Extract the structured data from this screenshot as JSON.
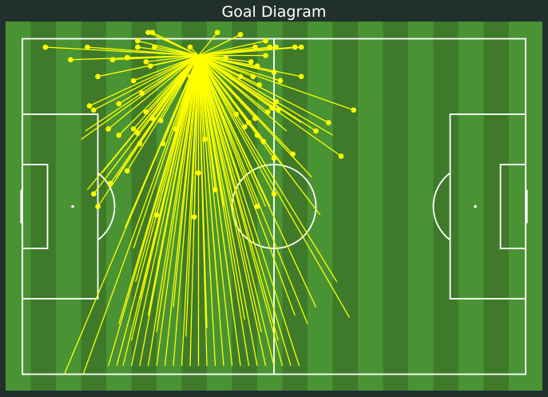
{
  "chart_data": {
    "type": "scatter",
    "title": "Goal Diagram",
    "xlabel": "",
    "ylabel": "",
    "xlim": [
      0,
      120
    ],
    "ylim": [
      0,
      80
    ],
    "grid": false,
    "legend": "none",
    "colors": {
      "background": "#22302d",
      "pitch_dark": "#3e7a2a",
      "pitch_light": "#4a9334",
      "lines": "#ffffff",
      "marker": "#ffff00"
    },
    "origin": {
      "x": 42.0,
      "y": 76.0
    },
    "points": [
      [
        5.5,
        78.0
      ],
      [
        15.5,
        78.0
      ],
      [
        27.5,
        78.0
      ],
      [
        31.5,
        78.0
      ],
      [
        40.0,
        78.0
      ],
      [
        55.5,
        78.0
      ],
      [
        59.0,
        78.0
      ],
      [
        60.5,
        78.0
      ],
      [
        65.0,
        78.0
      ],
      [
        66.5,
        78.0
      ],
      [
        27.5,
        79.5
      ],
      [
        30.0,
        81.5
      ],
      [
        31.0,
        81.5
      ],
      [
        46.5,
        81.5
      ],
      [
        52.0,
        81.0
      ],
      [
        58.0,
        79.5
      ],
      [
        11.5,
        75.0
      ],
      [
        21.5,
        75.0
      ],
      [
        25.0,
        75.5
      ],
      [
        29.5,
        74.5
      ],
      [
        48.5,
        75.5
      ],
      [
        54.5,
        74.5
      ],
      [
        56.0,
        73.5
      ],
      [
        58.0,
        76.0
      ],
      [
        60.0,
        72.0
      ],
      [
        61.5,
        70.0
      ],
      [
        18.0,
        71.0
      ],
      [
        26.5,
        70.0
      ],
      [
        30.5,
        73.5
      ],
      [
        40.0,
        71.0
      ],
      [
        52.0,
        71.0
      ],
      [
        55.0,
        71.0
      ],
      [
        56.5,
        69.0
      ],
      [
        60.5,
        65.0
      ],
      [
        61.0,
        63.0
      ],
      [
        66.5,
        71.0
      ],
      [
        16.0,
        64.0
      ],
      [
        17.0,
        63.0
      ],
      [
        23.0,
        64.5
      ],
      [
        28.5,
        67.0
      ],
      [
        29.5,
        62.5
      ],
      [
        31.0,
        61.0
      ],
      [
        33.0,
        60.5
      ],
      [
        51.0,
        62.0
      ],
      [
        54.0,
        60.0
      ],
      [
        55.5,
        61.0
      ],
      [
        58.5,
        62.5
      ],
      [
        59.5,
        63.5
      ],
      [
        79.0,
        63.0
      ],
      [
        20.5,
        58.5
      ],
      [
        23.0,
        57.0
      ],
      [
        26.5,
        58.5
      ],
      [
        27.5,
        57.5
      ],
      [
        28.0,
        55.0
      ],
      [
        33.5,
        55.0
      ],
      [
        36.5,
        58.5
      ],
      [
        43.5,
        56.0
      ],
      [
        53.0,
        59.0
      ],
      [
        56.0,
        57.0
      ],
      [
        57.5,
        55.5
      ],
      [
        60.0,
        51.5
      ],
      [
        64.5,
        52.5
      ],
      [
        70.0,
        58.0
      ],
      [
        73.0,
        60.0
      ],
      [
        76.0,
        52.0
      ],
      [
        25.0,
        48.5
      ],
      [
        17.0,
        43.0
      ],
      [
        21.0,
        45.5
      ],
      [
        42.0,
        48.0
      ],
      [
        46.0,
        44.0
      ],
      [
        60.0,
        43.0
      ],
      [
        32.0,
        38.0
      ],
      [
        41.0,
        37.5
      ],
      [
        18.0,
        40.0
      ],
      [
        56.0,
        40.0
      ]
    ],
    "line_ends": [
      [
        20.5,
        2.0
      ],
      [
        22.5,
        2.0
      ],
      [
        24.0,
        2.0
      ],
      [
        26.0,
        2.0
      ],
      [
        28.0,
        2.0
      ],
      [
        30.0,
        2.0
      ],
      [
        32.0,
        2.0
      ],
      [
        34.0,
        2.0
      ],
      [
        36.0,
        2.0
      ],
      [
        38.0,
        2.0
      ],
      [
        40.0,
        2.0
      ],
      [
        42.0,
        2.0
      ],
      [
        44.0,
        2.0
      ],
      [
        46.0,
        2.0
      ],
      [
        48.0,
        2.0
      ],
      [
        50.0,
        2.0
      ],
      [
        52.0,
        2.0
      ],
      [
        54.0,
        2.0
      ],
      [
        56.0,
        2.0
      ],
      [
        58.0,
        2.0
      ],
      [
        60.0,
        2.0
      ],
      [
        62.0,
        2.0
      ],
      [
        64.0,
        2.0
      ],
      [
        66.0,
        2.0
      ],
      [
        10.0,
        0.0
      ],
      [
        14.5,
        0.0
      ],
      [
        23.0,
        12.0
      ],
      [
        26.0,
        8.0
      ],
      [
        28.0,
        18.0
      ],
      [
        30.0,
        14.0
      ],
      [
        32.0,
        10.0
      ],
      [
        36.0,
        16.0
      ],
      [
        39.0,
        9.0
      ],
      [
        44.0,
        11.0
      ],
      [
        47.0,
        15.0
      ],
      [
        50.0,
        17.0
      ],
      [
        53.0,
        13.0
      ],
      [
        57.0,
        10.0
      ],
      [
        61.0,
        8.0
      ],
      [
        65.0,
        14.0
      ],
      [
        68.0,
        12.0
      ],
      [
        70.0,
        16.0
      ],
      [
        75.0,
        22.0
      ],
      [
        78.0,
        13.5
      ],
      [
        15.0,
        58.0
      ],
      [
        15.5,
        44.0
      ],
      [
        19.0,
        48.0
      ],
      [
        22.5,
        47.0
      ],
      [
        24.5,
        35.0
      ],
      [
        26.5,
        30.0
      ],
      [
        27.0,
        22.0
      ],
      [
        48.0,
        40.0
      ],
      [
        52.0,
        46.0
      ],
      [
        58.0,
        40.0
      ],
      [
        62.0,
        50.0
      ],
      [
        63.0,
        58.0
      ],
      [
        66.5,
        60.0
      ],
      [
        74.0,
        57.0
      ],
      [
        69.0,
        47.0
      ],
      [
        71.0,
        38.0
      ],
      [
        14.0,
        56.0
      ],
      [
        59.0,
        40.0
      ]
    ]
  }
}
